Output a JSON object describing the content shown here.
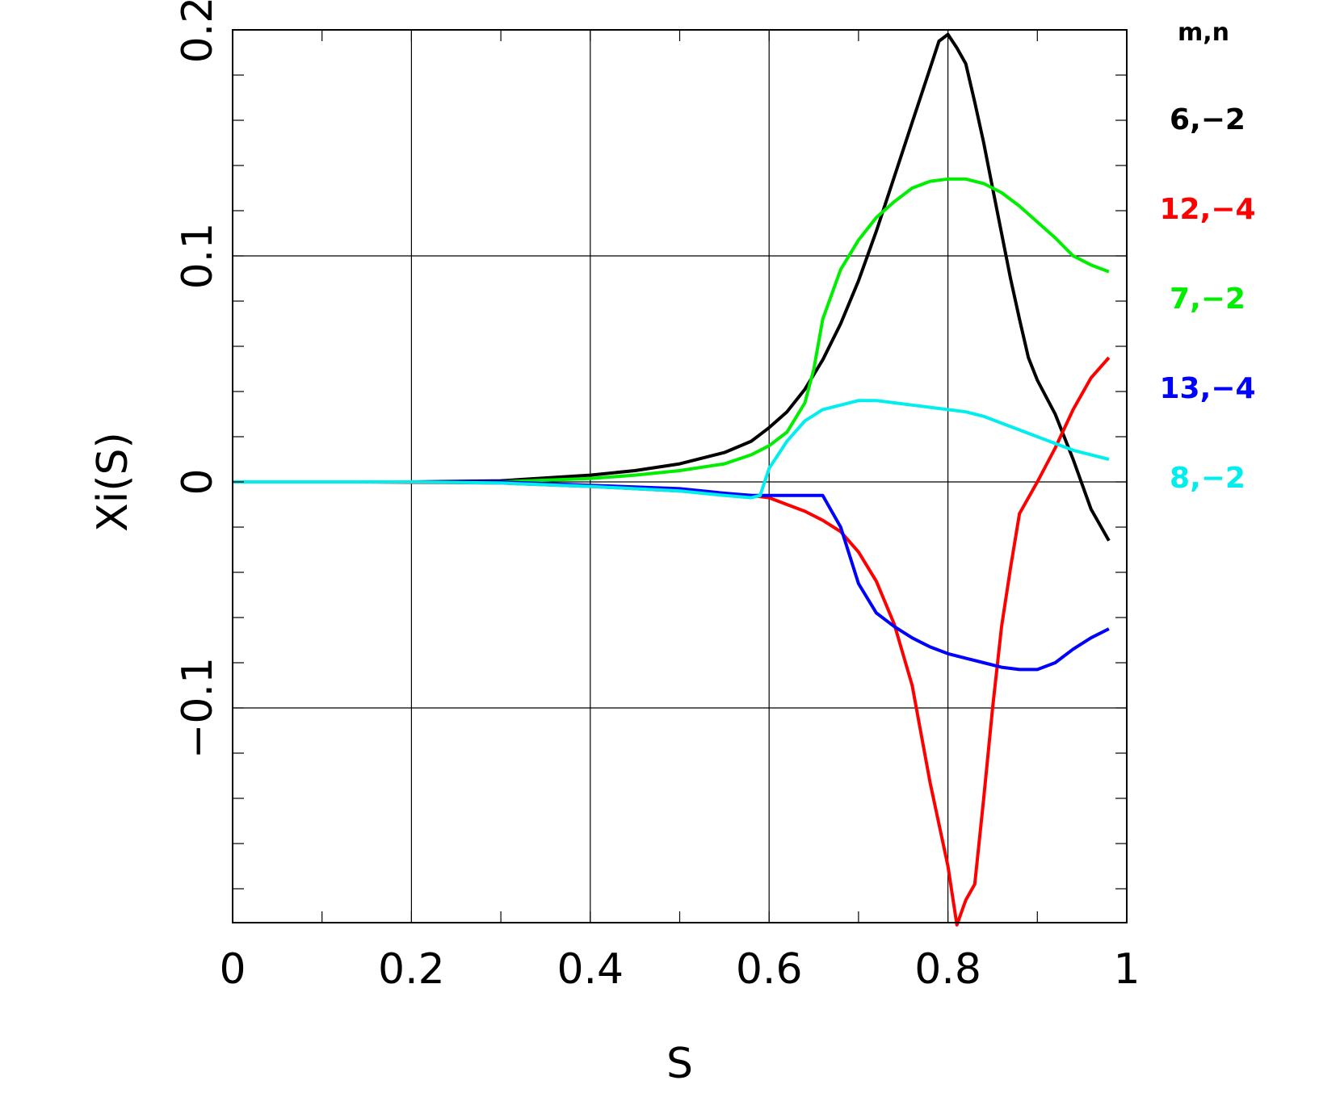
{
  "chart_data": {
    "type": "line",
    "xlabel": "S",
    "ylabel": "Xi(S)",
    "xlim": [
      0,
      1
    ],
    "ylim": [
      -0.195,
      0.2
    ],
    "xticks": [
      {
        "v": 0,
        "label": "0"
      },
      {
        "v": 0.2,
        "label": "0.2"
      },
      {
        "v": 0.4,
        "label": "0.4"
      },
      {
        "v": 0.6,
        "label": "0.6"
      },
      {
        "v": 0.8,
        "label": "0.8"
      },
      {
        "v": 1,
        "label": "1"
      }
    ],
    "yticks": [
      {
        "v": -0.1,
        "label": "−0.1"
      },
      {
        "v": 0,
        "label": "0"
      },
      {
        "v": 0.1,
        "label": "0.1"
      },
      {
        "v": 0.2,
        "label": "0.2"
      }
    ],
    "grid": true,
    "legend_header": "m,n",
    "legend_position": "right",
    "series": [
      {
        "name": "6,−2",
        "color": "#000000",
        "x": [
          0.14,
          0.2,
          0.3,
          0.4,
          0.45,
          0.5,
          0.55,
          0.58,
          0.6,
          0.62,
          0.64,
          0.66,
          0.68,
          0.7,
          0.72,
          0.74,
          0.76,
          0.78,
          0.79,
          0.8,
          0.81,
          0.82,
          0.83,
          0.84,
          0.85,
          0.86,
          0.87,
          0.88,
          0.89,
          0.9,
          0.92,
          0.94,
          0.96,
          0.98
        ],
        "y": [
          0.0,
          0.0,
          0.0005,
          0.003,
          0.005,
          0.008,
          0.013,
          0.018,
          0.024,
          0.031,
          0.041,
          0.054,
          0.07,
          0.089,
          0.111,
          0.135,
          0.159,
          0.183,
          0.195,
          0.198,
          0.192,
          0.185,
          0.168,
          0.15,
          0.13,
          0.11,
          0.09,
          0.072,
          0.055,
          0.045,
          0.03,
          0.01,
          -0.012,
          -0.026
        ]
      },
      {
        "name": "12,−4",
        "color": "#ff0000",
        "x": [
          0.14,
          0.3,
          0.4,
          0.5,
          0.58,
          0.6,
          0.62,
          0.64,
          0.66,
          0.68,
          0.7,
          0.72,
          0.74,
          0.76,
          0.78,
          0.8,
          0.81,
          0.82,
          0.83,
          0.84,
          0.85,
          0.86,
          0.87,
          0.88,
          0.9,
          0.92,
          0.94,
          0.96,
          0.98
        ],
        "y": [
          0.0,
          -0.0005,
          -0.002,
          -0.004,
          -0.006,
          -0.007,
          -0.01,
          -0.013,
          -0.017,
          -0.022,
          -0.031,
          -0.044,
          -0.063,
          -0.09,
          -0.133,
          -0.17,
          -0.196,
          -0.185,
          -0.178,
          -0.14,
          -0.1,
          -0.064,
          -0.038,
          -0.014,
          0.0,
          0.015,
          0.032,
          0.046,
          0.055
        ]
      },
      {
        "name": "7,−2",
        "color": "#00ee00",
        "x": [
          0.14,
          0.3,
          0.4,
          0.45,
          0.5,
          0.55,
          0.58,
          0.6,
          0.62,
          0.64,
          0.65,
          0.66,
          0.68,
          0.7,
          0.72,
          0.74,
          0.76,
          0.78,
          0.8,
          0.82,
          0.84,
          0.86,
          0.88,
          0.9,
          0.92,
          0.94,
          0.96,
          0.98
        ],
        "y": [
          0.0,
          0.0,
          0.0015,
          0.003,
          0.005,
          0.008,
          0.012,
          0.016,
          0.022,
          0.035,
          0.05,
          0.072,
          0.094,
          0.107,
          0.117,
          0.124,
          0.13,
          0.133,
          0.134,
          0.134,
          0.132,
          0.128,
          0.122,
          0.115,
          0.108,
          0.1,
          0.096,
          0.093
        ]
      },
      {
        "name": "13,−4",
        "color": "#0000ff",
        "x": [
          0.14,
          0.3,
          0.4,
          0.5,
          0.55,
          0.58,
          0.6,
          0.62,
          0.64,
          0.66,
          0.68,
          0.7,
          0.72,
          0.74,
          0.76,
          0.78,
          0.8,
          0.82,
          0.84,
          0.86,
          0.88,
          0.9,
          0.92,
          0.94,
          0.96,
          0.98
        ],
        "y": [
          0.0,
          0.0,
          -0.0015,
          -0.003,
          -0.005,
          -0.006,
          -0.006,
          -0.006,
          -0.006,
          -0.006,
          -0.02,
          -0.045,
          -0.058,
          -0.064,
          -0.069,
          -0.073,
          -0.076,
          -0.078,
          -0.08,
          -0.082,
          -0.083,
          -0.083,
          -0.08,
          -0.074,
          -0.069,
          -0.065
        ]
      },
      {
        "name": "8,−2",
        "color": "#00eeee",
        "x": [
          0.0,
          0.2,
          0.3,
          0.4,
          0.5,
          0.55,
          0.58,
          0.59,
          0.6,
          0.62,
          0.64,
          0.66,
          0.68,
          0.7,
          0.72,
          0.74,
          0.76,
          0.78,
          0.8,
          0.82,
          0.84,
          0.86,
          0.88,
          0.9,
          0.92,
          0.94,
          0.96,
          0.98
        ],
        "y": [
          0.0,
          0.0,
          -0.0005,
          -0.002,
          -0.004,
          -0.006,
          -0.007,
          -0.006,
          0.006,
          0.018,
          0.027,
          0.032,
          0.034,
          0.036,
          0.036,
          0.035,
          0.034,
          0.033,
          0.032,
          0.031,
          0.029,
          0.026,
          0.023,
          0.02,
          0.017,
          0.014,
          0.012,
          0.01
        ]
      }
    ]
  }
}
